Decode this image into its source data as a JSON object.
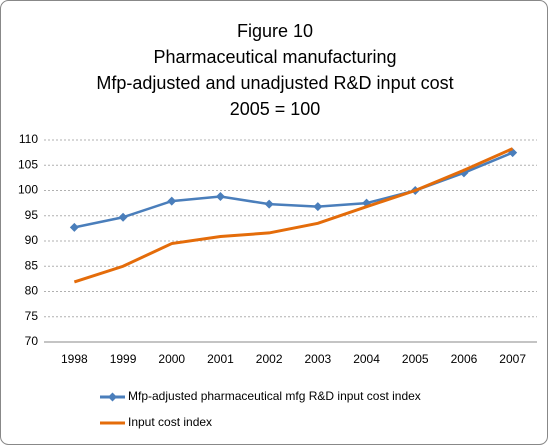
{
  "chart_data": {
    "type": "line",
    "title": [
      "Figure 10",
      "Pharmaceutical manufacturing",
      "Mfp-adjusted and unadjusted R&D input cost",
      "2005 = 100"
    ],
    "categories": [
      "1998",
      "1999",
      "2000",
      "2001",
      "2002",
      "2003",
      "2004",
      "2005",
      "2006",
      "2007"
    ],
    "series": [
      {
        "name": "Mfp-adjusted pharmaceutical mfg R&D input cost index",
        "color": "#4a7ebb",
        "marker": "diamond",
        "values": [
          92.7,
          94.7,
          97.9,
          98.8,
          97.3,
          96.8,
          97.5,
          100,
          103.5,
          107.5
        ]
      },
      {
        "name": "Input cost index",
        "color": "#e46c0a",
        "values": [
          81.9,
          85,
          89.5,
          90.9,
          91.6,
          93.5,
          96.8,
          100,
          104,
          108.3
        ]
      }
    ],
    "ylim": [
      70,
      110
    ],
    "yticks": [
      70,
      75,
      80,
      85,
      90,
      95,
      100,
      105,
      110
    ],
    "grid": true,
    "legend": "bottom"
  }
}
